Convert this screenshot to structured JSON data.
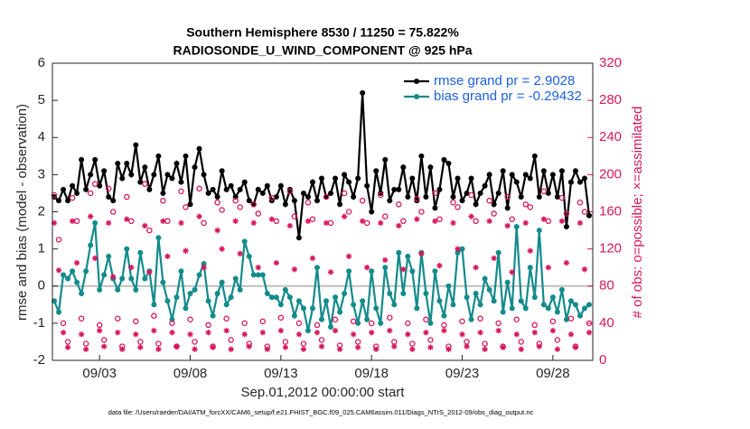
{
  "chart_data": {
    "type": "line",
    "title": [
      "Southern Hemisphere 8530 / 11250 = 75.822%",
      "RADIOSONDE_U_WIND_COMPONENT @ 925 hPa"
    ],
    "y_label": "rmse and bias (model - observation)",
    "y2_label": "# of obs: o=possible; ×=assimilated",
    "x_label": "Sep.01,2012 00:00:00 start",
    "footnote": "data file: /Users/raeder/DAI/ATM_forcXX/CAM6_setup/f.e21.FHIST_BGC.f09_025.CAM6assim.011/Diags_NTrS_2012-09/obs_diag_output.nc",
    "legend": "upper right",
    "legend_text_color": "#1f5fe0",
    "zero_line_color": "#bfbfbf",
    "xlim": [
      -0.6,
      29.2
    ],
    "xticks": [
      {
        "value": 2,
        "label": "09/03"
      },
      {
        "value": 7,
        "label": "09/08"
      },
      {
        "value": 12,
        "label": "09/13"
      },
      {
        "value": 17,
        "label": "09/18"
      },
      {
        "value": 22,
        "label": "09/23"
      },
      {
        "value": 27,
        "label": "09/28"
      }
    ],
    "ylim": [
      -2,
      6
    ],
    "yticks": [
      -2,
      -1,
      0,
      1,
      2,
      3,
      4,
      5,
      6
    ],
    "y2lim": [
      0,
      320
    ],
    "y2ticks": [
      0,
      40,
      80,
      120,
      160,
      200,
      240,
      280,
      320
    ],
    "x": [
      -0.5,
      -0.25,
      0,
      0.25,
      0.5,
      0.75,
      1,
      1.25,
      1.5,
      1.75,
      2,
      2.25,
      2.5,
      2.75,
      3,
      3.25,
      3.5,
      3.75,
      4,
      4.25,
      4.5,
      4.75,
      5,
      5.25,
      5.5,
      5.75,
      6,
      6.25,
      6.5,
      6.75,
      7,
      7.25,
      7.5,
      7.75,
      8,
      8.25,
      8.5,
      8.75,
      9,
      9.25,
      9.5,
      9.75,
      10,
      10.25,
      10.5,
      10.75,
      11,
      11.25,
      11.5,
      11.75,
      12,
      12.25,
      12.5,
      12.75,
      13,
      13.25,
      13.5,
      13.75,
      14,
      14.25,
      14.5,
      14.75,
      15,
      15.25,
      15.5,
      15.75,
      16,
      16.25,
      16.5,
      16.75,
      17,
      17.25,
      17.5,
      17.75,
      18,
      18.25,
      18.5,
      18.75,
      19,
      19.25,
      19.5,
      19.75,
      20,
      20.25,
      20.5,
      20.75,
      21,
      21.25,
      21.5,
      21.75,
      22,
      22.25,
      22.5,
      22.75,
      23,
      23.25,
      23.5,
      23.75,
      24,
      24.25,
      24.5,
      24.75,
      25,
      25.25,
      25.5,
      25.75,
      26,
      26.25,
      26.5,
      26.75,
      27,
      27.25,
      27.5,
      27.75,
      28,
      28.25,
      28.5,
      28.75,
      29
    ],
    "series": [
      {
        "name": "rmse grand pr = 2.9028",
        "color": "#000000",
        "marker": "dot",
        "line": true,
        "legend": true,
        "values": [
          2.4,
          2.3,
          2.6,
          2.3,
          2.7,
          2.5,
          3.4,
          2.6,
          3.0,
          3.4,
          2.7,
          3.1,
          2.4,
          2.3,
          3.3,
          2.9,
          3.3,
          3.0,
          3.8,
          2.8,
          3.2,
          2.6,
          3.0,
          3.5,
          2.5,
          3.0,
          2.9,
          3.3,
          2.8,
          3.5,
          2.2,
          3.2,
          3.7,
          3.0,
          2.5,
          2.6,
          2.4,
          3.1,
          2.6,
          2.7,
          2.4,
          2.6,
          2.8,
          2.3,
          2.2,
          2.6,
          2.5,
          2.7,
          2.3,
          2.4,
          2.7,
          2.2,
          2.6,
          2.3,
          1.3,
          2.5,
          2.4,
          2.8,
          2.3,
          2.9,
          2.4,
          2.5,
          2.9,
          2.2,
          3.0,
          2.8,
          2.4,
          2.9,
          5.2,
          2.7,
          2.0,
          3.1,
          2.5,
          3.4,
          2.3,
          2.6,
          2.6,
          3.2,
          2.4,
          2.9,
          2.3,
          3.5,
          2.4,
          3.2,
          2.1,
          2.6,
          3.4,
          3.3,
          2.4,
          2.9,
          2.3,
          2.5,
          2.9,
          2.2,
          2.5,
          2.7,
          3.0,
          2.2,
          2.5,
          3.1,
          2.1,
          3.0,
          2.8,
          2.4,
          3.0,
          2.9,
          3.5,
          2.4,
          3.1,
          2.5,
          3.0,
          2.4,
          3.1,
          1.6,
          2.8,
          3.1,
          2.8,
          2.9,
          1.9
        ]
      },
      {
        "name": "bias grand pr = -0.29432",
        "color": "#138b8b",
        "marker": "dot",
        "line": true,
        "legend": true,
        "values": [
          -0.4,
          -0.7,
          0.3,
          0.2,
          0.4,
          0.1,
          -0.2,
          0.4,
          1.1,
          1.7,
          -0.1,
          0.3,
          0.8,
          0.2,
          -0.1,
          0.2,
          1.0,
          0.2,
          -0.1,
          0.9,
          0.2,
          0.4,
          -0.5,
          1.3,
          0.1,
          -0.4,
          -0.9,
          -0.3,
          0.4,
          -0.6,
          -0.2,
          -0.1,
          0.3,
          0.6,
          -0.4,
          -0.8,
          -0.2,
          0.1,
          -0.5,
          -0.3,
          0.2,
          -0.1,
          1.2,
          0.8,
          0.3,
          0.3,
          0.3,
          -0.2,
          -0.3,
          -0.3,
          -0.5,
          -0.1,
          -0.3,
          -0.8,
          -0.4,
          -0.6,
          -1.2,
          -0.6,
          0.5,
          -0.9,
          -0.4,
          -1.1,
          -0.3,
          -0.7,
          -0.2,
          0.4,
          -0.5,
          -1.0,
          -0.4,
          -0.9,
          0.4,
          -0.6,
          -1.0,
          0.5,
          -0.2,
          -0.5,
          0.9,
          -0.2,
          0.8,
          0.4,
          -0.6,
          0.9,
          -0.2,
          -1.0,
          0.4,
          -0.4,
          -0.8,
          0.0,
          -0.5,
          0.9,
          1.0,
          -0.3,
          -0.9,
          -0.2,
          -0.5,
          0.2,
          -0.1,
          -0.4,
          0.9,
          -0.7,
          0.1,
          -0.6,
          1.6,
          -0.4,
          -0.6,
          0.5,
          -0.3,
          1.5,
          -0.5,
          -0.6,
          -0.3,
          -0.7,
          -0.1,
          -0.9,
          -0.4,
          -0.5,
          -0.8,
          -0.6,
          -0.5
        ]
      },
      {
        "color": "#d6175e",
        "marker": "circle",
        "line": false,
        "legend": false,
        "axis": "y2",
        "values": [
          178,
          130,
          40,
          20,
          175,
          150,
          45,
          18,
          180,
          190,
          38,
          22,
          185,
          160,
          45,
          15,
          176,
          150,
          42,
          20,
          190,
          140,
          48,
          18,
          172,
          150,
          40,
          15,
          182,
          165,
          44,
          20,
          185,
          148,
          38,
          15,
          170,
          162,
          45,
          22,
          172,
          165,
          40,
          18,
          168,
          158,
          42,
          15,
          175,
          150,
          46,
          20,
          182,
          155,
          40,
          18,
          170,
          152,
          38,
          22,
          176,
          148,
          44,
          16,
          180,
          160,
          42,
          20,
          172,
          148,
          40,
          15,
          178,
          155,
          46,
          20,
          168,
          150,
          40,
          18,
          174,
          160,
          44,
          22,
          180,
          152,
          38,
          15,
          170,
          165,
          42,
          20,
          178,
          150,
          45,
          18,
          172,
          158,
          40,
          15,
          176,
          152,
          44,
          20,
          168,
          165,
          38,
          18,
          182,
          150,
          42,
          22,
          175,
          158,
          45,
          15,
          170,
          160,
          40
        ]
      },
      {
        "color": "#d6175e",
        "marker": "asterisk",
        "line": false,
        "legend": false,
        "axis": "y2",
        "values": [
          148,
          97,
          30,
          14,
          150,
          105,
          28,
          12,
          155,
          110,
          32,
          15,
          148,
          90,
          30,
          12,
          152,
          100,
          28,
          14,
          145,
          95,
          32,
          12,
          150,
          112,
          30,
          15,
          148,
          118,
          28,
          12,
          155,
          100,
          30,
          14,
          140,
          120,
          32,
          12,
          150,
          115,
          28,
          15,
          148,
          100,
          30,
          12,
          152,
          105,
          32,
          14,
          145,
          98,
          28,
          12,
          150,
          110,
          30,
          15,
          148,
          95,
          32,
          12,
          155,
          112,
          28,
          14,
          150,
          100,
          30,
          12,
          148,
          108,
          32,
          15,
          145,
          98,
          28,
          12,
          152,
          115,
          30,
          14,
          150,
          102,
          32,
          12,
          148,
          120,
          28,
          15,
          155,
          100,
          30,
          12,
          150,
          110,
          32,
          14,
          145,
          95,
          28,
          12,
          148,
          118,
          30,
          15,
          152,
          100,
          32,
          12,
          150,
          105,
          28,
          14,
          148,
          98,
          30
        ]
      }
    ]
  }
}
